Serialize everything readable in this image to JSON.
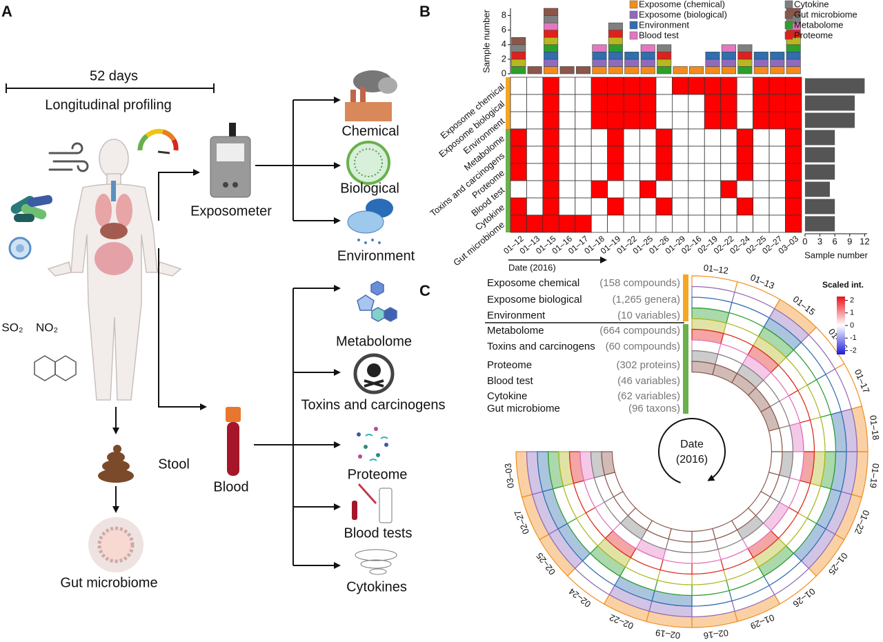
{
  "panel_a": {
    "label": "A",
    "duration": "52 days",
    "caption": "Longitudinal profiling",
    "pollutants": [
      "SO₂",
      "NO₂"
    ],
    "device": "Exposometer",
    "exposures": [
      "Chemical",
      "Biological",
      "Environment"
    ],
    "sample": "Blood",
    "omics": [
      "Metabolome",
      "Toxins and carcinogens",
      "Proteome",
      "Blood tests",
      "Cytokines"
    ],
    "stool": "Stool",
    "microbiome": "Gut microbiome"
  },
  "chart_data": {
    "type": "heatmap",
    "label": "B",
    "dates": [
      "01–12",
      "01–13",
      "01–15",
      "01–16",
      "01–17",
      "01–18",
      "01–19",
      "01–22",
      "01–25",
      "01–26",
      "01–29",
      "02–16",
      "02–19",
      "02–22",
      "02–24",
      "02–25",
      "02–27",
      "03–03"
    ],
    "rows": [
      {
        "label": "Exposome chemical",
        "color": "#f28c1e",
        "group_color": "#f5a623",
        "values": [
          0,
          0,
          1,
          0,
          0,
          1,
          1,
          1,
          1,
          0,
          1,
          1,
          1,
          1,
          0,
          1,
          1,
          1
        ]
      },
      {
        "label": "Exposome biological",
        "color": "#8e6bbf",
        "group_color": "#f5a623",
        "values": [
          0,
          0,
          1,
          0,
          0,
          1,
          1,
          1,
          1,
          0,
          0,
          0,
          1,
          1,
          0,
          1,
          1,
          1
        ]
      },
      {
        "label": "Environment",
        "color": "#2f6fb0",
        "group_color": "#f5a623",
        "values": [
          0,
          0,
          1,
          0,
          0,
          1,
          1,
          1,
          1,
          0,
          0,
          0,
          1,
          1,
          0,
          1,
          1,
          1
        ]
      },
      {
        "label": "Metabolome",
        "color": "#2ca02c",
        "group_color": "#6ab04c",
        "values": [
          1,
          0,
          1,
          0,
          0,
          0,
          1,
          0,
          0,
          1,
          0,
          0,
          0,
          0,
          1,
          0,
          0,
          1
        ]
      },
      {
        "label": "Toxins and carcinogens",
        "color": "#b5b820",
        "group_color": "#6ab04c",
        "values": [
          1,
          0,
          1,
          0,
          0,
          0,
          1,
          0,
          0,
          1,
          0,
          0,
          0,
          0,
          1,
          0,
          0,
          1
        ]
      },
      {
        "label": "Proteome",
        "color": "#e0201b",
        "group_color": "#6ab04c",
        "values": [
          1,
          0,
          1,
          0,
          0,
          0,
          1,
          0,
          0,
          1,
          0,
          0,
          0,
          0,
          1,
          0,
          0,
          1
        ]
      },
      {
        "label": "Blood test",
        "color": "#e377c2",
        "group_color": "#6ab04c",
        "values": [
          0,
          0,
          1,
          0,
          0,
          1,
          0,
          0,
          1,
          0,
          0,
          0,
          0,
          1,
          0,
          0,
          0,
          1
        ]
      },
      {
        "label": "Cytokine",
        "color": "#7f7f7f",
        "group_color": "#6ab04c",
        "values": [
          1,
          0,
          1,
          0,
          0,
          0,
          1,
          0,
          0,
          1,
          0,
          0,
          0,
          0,
          1,
          0,
          0,
          1
        ]
      },
      {
        "label": "Gut microbiome",
        "color": "#8c564b",
        "group_color": "#6ab04c",
        "values": [
          1,
          1,
          1,
          1,
          1,
          0,
          0,
          0,
          0,
          0,
          0,
          0,
          0,
          0,
          0,
          0,
          0,
          1
        ]
      }
    ],
    "cell_color": "#ff0000",
    "legend": [
      {
        "name": "Exposome (chemical)",
        "color": "#f28c1e"
      },
      {
        "name": "Exposome (biological)",
        "color": "#8e6bbf"
      },
      {
        "name": "Environment",
        "color": "#2f6fb0"
      },
      {
        "name": "Blood test",
        "color": "#e377c2"
      },
      {
        "name": "Cytokine",
        "color": "#7f7f7f"
      },
      {
        "name": "Gut microbiome",
        "color": "#8c564b"
      },
      {
        "name": "Metabolome",
        "color": "#2ca02c"
      },
      {
        "name": "Proteome",
        "color": "#e0201b"
      }
    ],
    "ylabel": "Sample number",
    "ylim": [
      0,
      9
    ],
    "yticks": [
      0,
      2,
      4,
      6,
      8
    ],
    "sample_numbers": [
      12,
      10,
      10,
      6,
      6,
      6,
      5,
      6,
      6
    ],
    "bar_color": "#555555",
    "xlabel": "Sample number",
    "xlim": [
      0,
      12.5
    ],
    "xticks": [
      0,
      3,
      6,
      9,
      12
    ],
    "date_axis": "Date (2016)"
  },
  "panel_c": {
    "label": "C",
    "rows": [
      {
        "name": "Exposome chemical",
        "count": "(158 compounds)"
      },
      {
        "name": "Exposome biological",
        "count": "(1,265 genera)"
      },
      {
        "name": "Environment",
        "count": "(10 variables)"
      },
      {
        "name": "Metabolome",
        "count": "(664 compounds)"
      },
      {
        "name": "Toxins and carcinogens",
        "count": "(60 compounds)"
      },
      {
        "name": "Proteome",
        "count": "(302 proteins)"
      },
      {
        "name": "Blood test",
        "count": "(46 variables)"
      },
      {
        "name": "Cytokine",
        "count": "(62 variables)"
      },
      {
        "name": "Gut microbiome",
        "count": "(96 taxons)"
      }
    ],
    "center": [
      "Date",
      "(2016)"
    ],
    "colorbar_title": "Scaled int.",
    "colorbar_lim": [
      -2.3,
      2.3
    ],
    "colorbar_ticks": [
      2,
      1,
      0,
      -1,
      -2
    ]
  }
}
